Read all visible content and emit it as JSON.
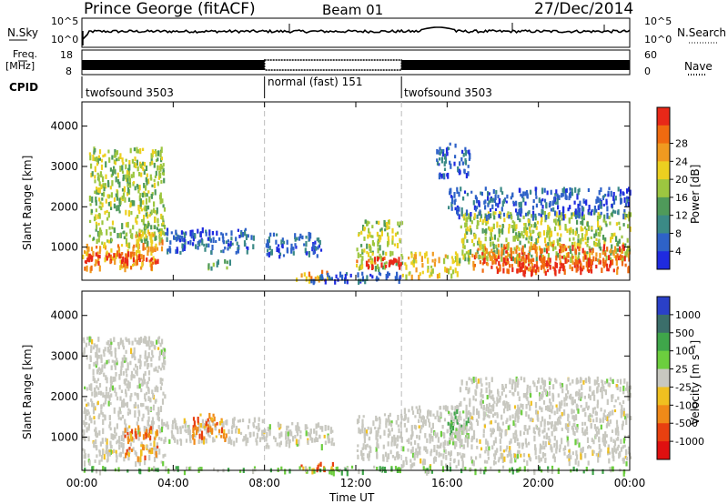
{
  "header": {
    "site": "Prince George (fitACF)",
    "beam": "Beam 01",
    "date": "27/Dec/2014"
  },
  "top_panels": {
    "noise_left_label": "N.Sky",
    "noise_right_label": "N.Search",
    "noise_ticks": [
      "10^5",
      "10^0"
    ],
    "freq_label_line1": "Freq.",
    "freq_label_line2": "[MHz]",
    "freq_ticks": [
      "18",
      "8"
    ],
    "nave_label": "Nave",
    "nave_ticks": [
      "60",
      "0"
    ],
    "cpid_label": "CPID",
    "cpid_segments": [
      {
        "label": "twofsound 3503",
        "start_hour": 0,
        "end_hour": 8
      },
      {
        "label": "normal (fast) 151",
        "start_hour": 8,
        "end_hour": 14
      },
      {
        "label": "twofsound 3503",
        "start_hour": 14,
        "end_hour": 24
      }
    ]
  },
  "colors": {
    "power_scale": [
      "#1f2be0",
      "#2e62c8",
      "#3b8a86",
      "#4f9a5a",
      "#9cc640",
      "#ecd020",
      "#f09a20",
      "#f06a10",
      "#e82818"
    ],
    "velocity_scale": [
      "#2a40c8",
      "#3b6e6a",
      "#3fa64a",
      "#6cce3e",
      "#c8c8c0",
      "#f0c020",
      "#f08a18",
      "#e84010",
      "#e01010"
    ],
    "scan_gap": "#ffffff"
  },
  "chart_data": [
    {
      "type": "heatmap",
      "name": "power",
      "ylabel": "Slant Range [km]",
      "xlabel": "Time UT",
      "x_ticks": [
        "00:00",
        "04:00",
        "08:00",
        "12:00",
        "16:00",
        "20:00",
        "00:00"
      ],
      "y_ticks": [
        1000,
        2000,
        3000,
        4000
      ],
      "ylim": [
        180,
        4600
      ],
      "xlim_hours": [
        0,
        24
      ],
      "colorbar_label": "Power [dB]",
      "colorbar_ticks": [
        4,
        8,
        12,
        16,
        20,
        24,
        28
      ],
      "mode_boundaries_hours": [
        8,
        14
      ],
      "regions": [
        {
          "t0": 0.0,
          "t1": 3.3,
          "r0": 500,
          "r1": 1100,
          "level": 6
        },
        {
          "t0": 0.0,
          "t1": 3.3,
          "r0": 650,
          "r1": 900,
          "level": 8
        },
        {
          "t0": 0.3,
          "t1": 3.6,
          "r0": 1100,
          "r1": 3500,
          "level": 4
        },
        {
          "t0": 2.3,
          "t1": 3.5,
          "r0": 1000,
          "r1": 1450,
          "level": 6
        },
        {
          "t0": 3.6,
          "t1": 7.5,
          "r0": 900,
          "r1": 1500,
          "level": 1
        },
        {
          "t0": 5.5,
          "t1": 6.5,
          "r0": 500,
          "r1": 700,
          "level": 3
        },
        {
          "t0": 8.0,
          "t1": 10.5,
          "r0": 800,
          "r1": 1400,
          "level": 1
        },
        {
          "t0": 9.2,
          "t1": 10.8,
          "r0": 200,
          "r1": 450,
          "level": 6
        },
        {
          "t0": 10.0,
          "t1": 14.0,
          "r0": 200,
          "r1": 400,
          "level": 1
        },
        {
          "t0": 12.0,
          "t1": 14.0,
          "r0": 500,
          "r1": 1700,
          "level": 4
        },
        {
          "t0": 12.0,
          "t1": 14.0,
          "r0": 550,
          "r1": 800,
          "level": 8
        },
        {
          "t0": 14.0,
          "t1": 16.5,
          "r0": 300,
          "r1": 900,
          "level": 5
        },
        {
          "t0": 16.5,
          "t1": 24.0,
          "r0": 700,
          "r1": 1900,
          "level": 4
        },
        {
          "t0": 17.0,
          "t1": 24.0,
          "r0": 450,
          "r1": 1100,
          "level": 7
        },
        {
          "t0": 18.5,
          "t1": 22.5,
          "r0": 400,
          "r1": 750,
          "level": 8
        },
        {
          "t0": 15.5,
          "t1": 17.0,
          "r0": 2800,
          "r1": 3600,
          "level": 1
        },
        {
          "t0": 16.0,
          "t1": 24.0,
          "r0": 1800,
          "r1": 2500,
          "level": 1
        }
      ]
    },
    {
      "type": "heatmap",
      "name": "velocity",
      "ylabel": "Slant Range [km]",
      "xlabel": "Time UT",
      "x_ticks": [
        "00:00",
        "04:00",
        "08:00",
        "12:00",
        "16:00",
        "20:00",
        "00:00"
      ],
      "y_ticks": [
        1000,
        2000,
        3000,
        4000
      ],
      "ylim": [
        180,
        4600
      ],
      "xlim_hours": [
        0,
        24
      ],
      "colorbar_label": "Velocity [m s⁻¹]",
      "colorbar_ticks": [
        "1000",
        "500",
        "100",
        "25",
        "-25",
        "-100",
        "-500",
        "-1000"
      ],
      "mode_boundaries_hours": [
        8,
        14
      ],
      "regions": [
        {
          "t0": 0.0,
          "t1": 3.6,
          "r0": 400,
          "r1": 3500,
          "level": 4
        },
        {
          "t0": 1.8,
          "t1": 3.3,
          "r0": 500,
          "r1": 1300,
          "level": 6
        },
        {
          "t0": 3.6,
          "t1": 8.0,
          "r0": 900,
          "r1": 1500,
          "level": 4
        },
        {
          "t0": 4.8,
          "t1": 6.3,
          "r0": 950,
          "r1": 1600,
          "level": 6
        },
        {
          "t0": 8.0,
          "t1": 11.0,
          "r0": 800,
          "r1": 1400,
          "level": 4
        },
        {
          "t0": 9.5,
          "t1": 11.0,
          "r0": 200,
          "r1": 400,
          "level": 6
        },
        {
          "t0": 12.0,
          "t1": 14.0,
          "r0": 500,
          "r1": 1600,
          "level": 4
        },
        {
          "t0": 14.0,
          "t1": 16.5,
          "r0": 300,
          "r1": 1800,
          "level": 4
        },
        {
          "t0": 16.0,
          "t1": 17.0,
          "r0": 900,
          "r1": 1700,
          "level": 3
        },
        {
          "t0": 16.5,
          "t1": 24.0,
          "r0": 400,
          "r1": 2500,
          "level": 4
        },
        {
          "t0": 0.0,
          "t1": 24.0,
          "r0": 180,
          "r1": 300,
          "level": 3
        }
      ]
    }
  ]
}
